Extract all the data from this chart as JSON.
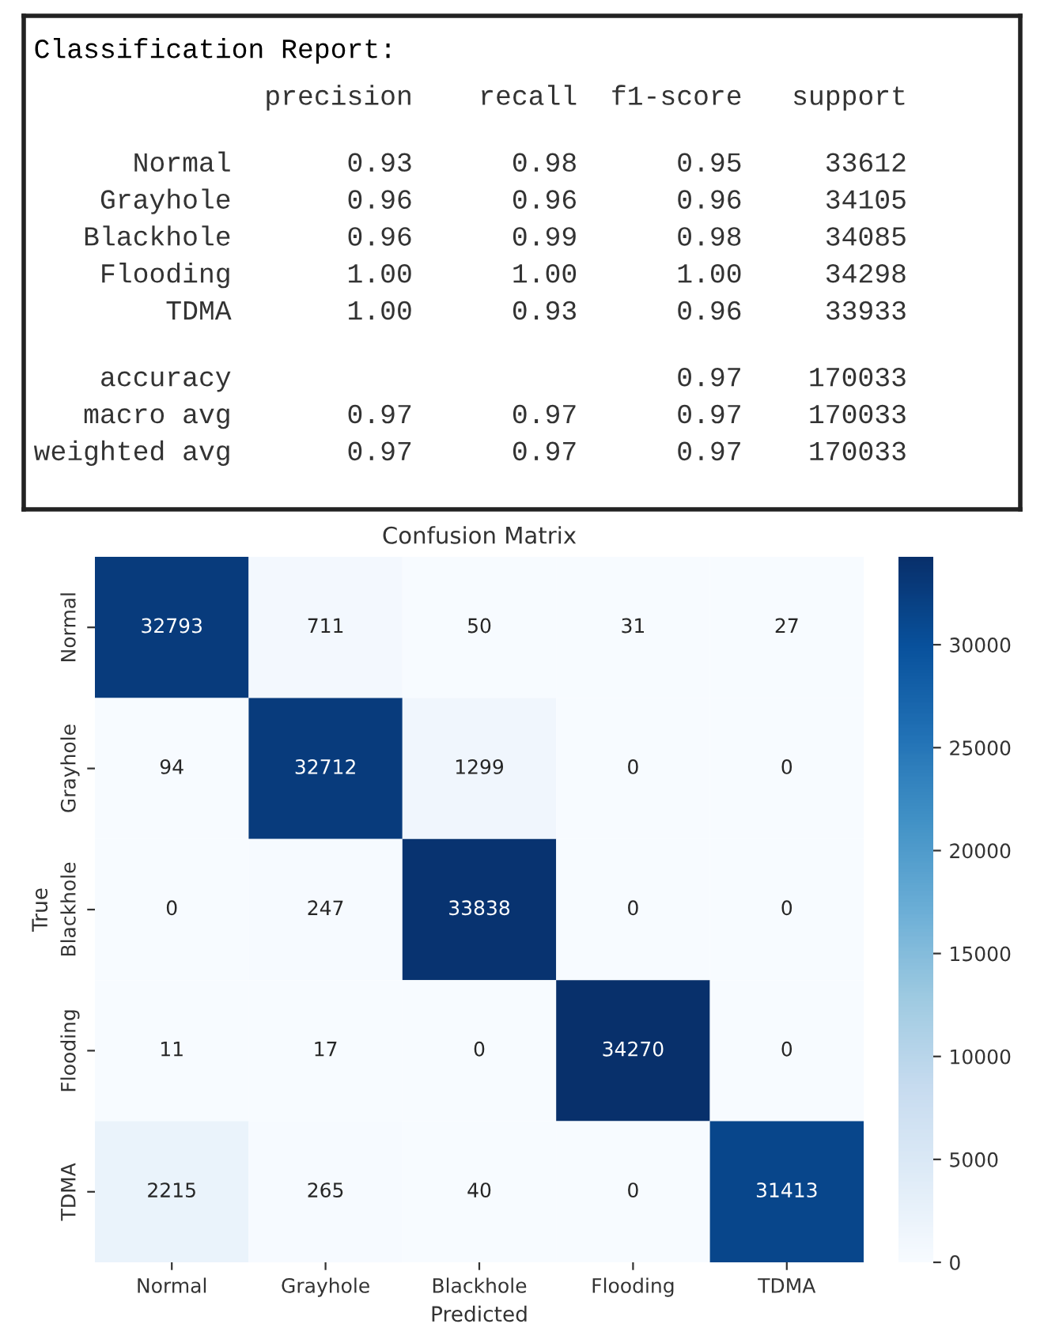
{
  "chart_data": [
    {
      "type": "other",
      "title": "Classification Report:",
      "annotations": [
        "              precision    recall  f1-score   support",
        "      Normal       0.93      0.98      0.95     33612",
        "    Grayhole       0.96      0.96      0.96     34105",
        "   Blackhole       0.96      0.99      0.98     34085",
        "    Flooding       1.00      1.00      1.00     34298",
        "        TDMA       1.00      0.93      0.96     33933",
        "    accuracy                           0.97    170033",
        "   macro avg       0.97      0.97      0.97    170033",
        "weighted avg       0.97      0.97      0.97    170033"
      ]
    },
    {
      "type": "heatmap",
      "title": "Confusion Matrix",
      "xlabel": "Predicted",
      "ylabel": "True",
      "categories": [
        "Normal",
        "Grayhole",
        "Blackhole",
        "Flooding",
        "TDMA"
      ],
      "y_categories": [
        "Normal",
        "Grayhole",
        "Blackhole",
        "Flooding",
        "TDMA"
      ],
      "cells": [
        [
          32793,
          711,
          50,
          31,
          27
        ],
        [
          94,
          32712,
          1299,
          0,
          0
        ],
        [
          0,
          247,
          33838,
          0,
          0
        ],
        [
          11,
          17,
          0,
          34270,
          0
        ],
        [
          2215,
          265,
          40,
          0,
          31413
        ]
      ],
      "clim": [
        0,
        34270
      ],
      "cticks": [
        0,
        5000,
        10000,
        15000,
        20000,
        25000,
        30000
      ],
      "data_labels": true
    }
  ]
}
